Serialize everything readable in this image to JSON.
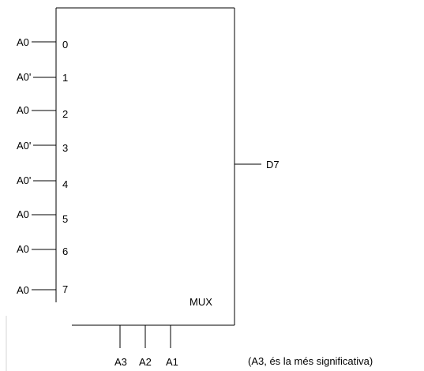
{
  "mux": {
    "title": "MUX",
    "inputs": [
      {
        "index": "0",
        "signal": "A0"
      },
      {
        "index": "1",
        "signal": "A0'"
      },
      {
        "index": "2",
        "signal": "A0"
      },
      {
        "index": "3",
        "signal": "A0'"
      },
      {
        "index": "4",
        "signal": "A0'"
      },
      {
        "index": "5",
        "signal": "A0"
      },
      {
        "index": "6",
        "signal": "A0"
      },
      {
        "index": "7",
        "signal": "A0"
      }
    ],
    "output": "D7",
    "selects": [
      "A3",
      "A2",
      "A1"
    ],
    "note": "(A3, és la més significativa)"
  }
}
